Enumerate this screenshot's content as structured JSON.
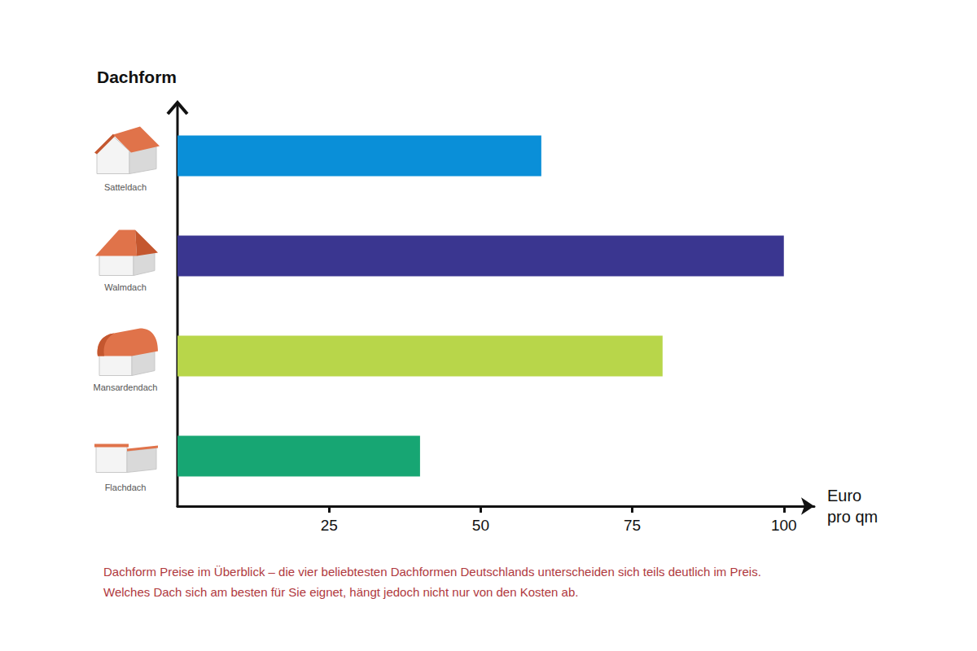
{
  "chart_data": {
    "type": "bar",
    "orientation": "horizontal",
    "ylabel": "Dachform",
    "xlabel": "Euro pro qm",
    "categories": [
      "Satteldach",
      "Walmdach",
      "Mansardendach",
      "Flachdach"
    ],
    "values": [
      60,
      100,
      80,
      40
    ],
    "colors": [
      "#0a8fd8",
      "#3a3690",
      "#b8d64a",
      "#17a673"
    ],
    "xlim": [
      0,
      105
    ],
    "xticks": [
      25,
      50,
      75,
      100
    ],
    "grid": false,
    "caption": [
      "Dachform Preise im Überblick – die vier beliebtesten Dachformen Deutschlands unterscheiden sich teils deutlich im Preis.",
      "Welches Dach sich am besten für Sie eignet, hängt jedoch nicht nur von den Kosten ab."
    ]
  }
}
